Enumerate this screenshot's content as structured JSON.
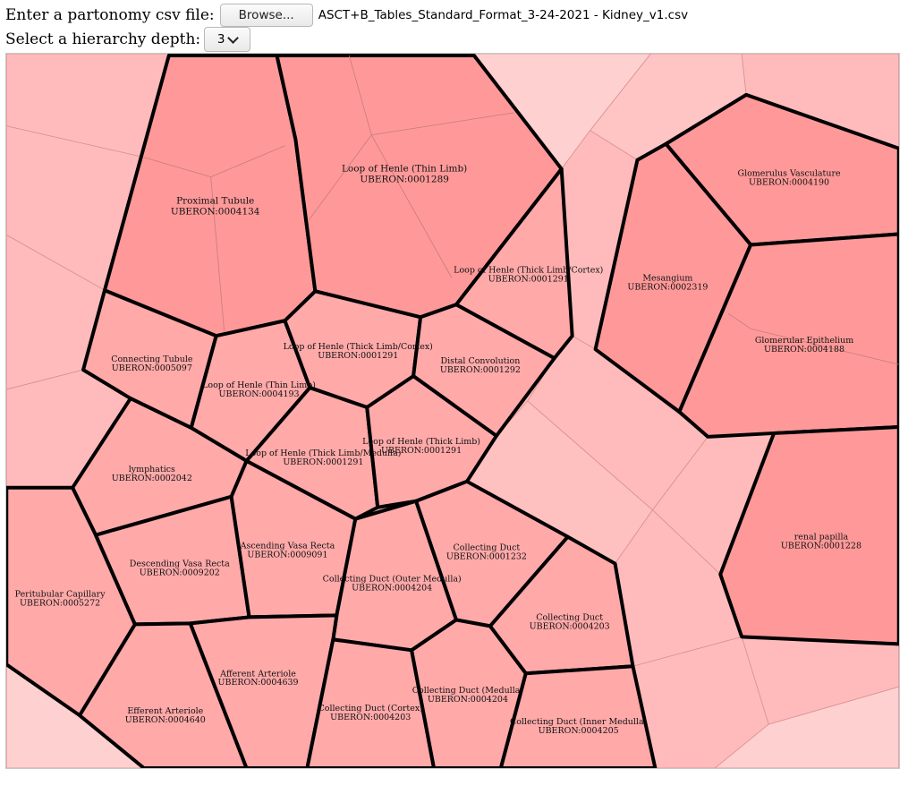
{
  "header": {
    "csv_label": "Enter a partonomy csv file:",
    "browse_label": "Browse...",
    "file_name": "ASCT+B_Tables_Standard_Format_3-24-2021 - Kidney_v1.csv",
    "depth_label": "Select a hierarchy depth:",
    "depth_value": "3"
  },
  "colors": {
    "level1": "#ff9999",
    "level2": "#ffa9a9",
    "background_cells": "#ffbbbb",
    "pale_cells": "#ffd0d0",
    "border": "#000000",
    "inner_edge": "#c87a7a"
  },
  "cells": [
    {
      "id": "proximal-tubule",
      "name": "Proximal Tubule",
      "code": "UBERON:0004134",
      "level": 1
    },
    {
      "id": "loop-henle-thin-top",
      "name": "Loop of Henle (Thin Limb)",
      "code": "UBERON:0001289",
      "level": 1
    },
    {
      "id": "loop-henle-thick-cortex-right",
      "name": "Loop of Henle (Thick Limb/Cortex)",
      "code": "UBERON:0001291",
      "level": 2
    },
    {
      "id": "glomerulus-vasculature",
      "name": "Glomerulus Vasculature",
      "code": "UBERON:0004190",
      "level": 1
    },
    {
      "id": "mesangium",
      "name": "Mesangium",
      "code": "UBERON:0002319",
      "level": 1
    },
    {
      "id": "glomerular-epithelium",
      "name": "Glomerular Epithelium",
      "code": "UBERON:0004188",
      "level": 1
    },
    {
      "id": "connecting-tubule",
      "name": "Connecting Tubule",
      "code": "UBERON:0005097",
      "level": 2
    },
    {
      "id": "loop-henle-thin-small",
      "name": "Loop of Henle (Thin Limb)",
      "code": "UBERON:0004193",
      "level": 2
    },
    {
      "id": "loop-henle-thick-cortex-center",
      "name": "Loop of Henle (Thick Limb/Cortex)",
      "code": "UBERON:0001291",
      "level": 2
    },
    {
      "id": "distal-convolution",
      "name": "Distal Convolution",
      "code": "UBERON:0001292",
      "level": 2
    },
    {
      "id": "lymphatics",
      "name": "lymphatics",
      "code": "UBERON:0002042",
      "level": 2
    },
    {
      "id": "loop-henle-thick-medulla",
      "name": "Loop of Henle (Thick Limb/Medulla)",
      "code": "UBERON:0001291",
      "level": 2
    },
    {
      "id": "loop-henle-thick",
      "name": "Loop of Henle (Thick Limb)",
      "code": "UBERON:0001291",
      "level": 2
    },
    {
      "id": "renal-papilla",
      "name": "renal papilla",
      "code": "UBERON:0001228",
      "level": 1
    },
    {
      "id": "peritubular-capillary",
      "name": "Peritubular Capillary",
      "code": "UBERON:0005272",
      "level": 2
    },
    {
      "id": "descending-vasa-recta",
      "name": "Descending Vasa Recta",
      "code": "UBERON:0009202",
      "level": 2
    },
    {
      "id": "ascending-vasa-recta",
      "name": "Ascending Vasa Recta",
      "code": "UBERON:0009091",
      "level": 2
    },
    {
      "id": "collecting-duct-outer-medulla",
      "name": "Collecting Duct (Outer Medulla)",
      "code": "UBERON:0004204",
      "level": 2
    },
    {
      "id": "collecting-duct-1232",
      "name": "Collecting Duct",
      "code": "UBERON:0001232",
      "level": 2
    },
    {
      "id": "collecting-duct-4203",
      "name": "Collecting Duct",
      "code": "UBERON:0004203",
      "level": 2
    },
    {
      "id": "efferent-arteriole",
      "name": "Efferent Arteriole",
      "code": "UBERON:0004640",
      "level": 2
    },
    {
      "id": "afferent-arteriole",
      "name": "Afferent Arteriole",
      "code": "UBERON:0004639",
      "level": 2
    },
    {
      "id": "collecting-duct-cortex",
      "name": "Collecting Duct (Cortex)",
      "code": "UBERON:0004203",
      "level": 2
    },
    {
      "id": "collecting-duct-medulla",
      "name": "Collecting Duct (Medulla)",
      "code": "UBERON:0004204",
      "level": 2
    },
    {
      "id": "collecting-duct-inner-medulla",
      "name": "Collecting Duct (Inner Medulla)",
      "code": "UBERON:0004205",
      "level": 2
    }
  ]
}
